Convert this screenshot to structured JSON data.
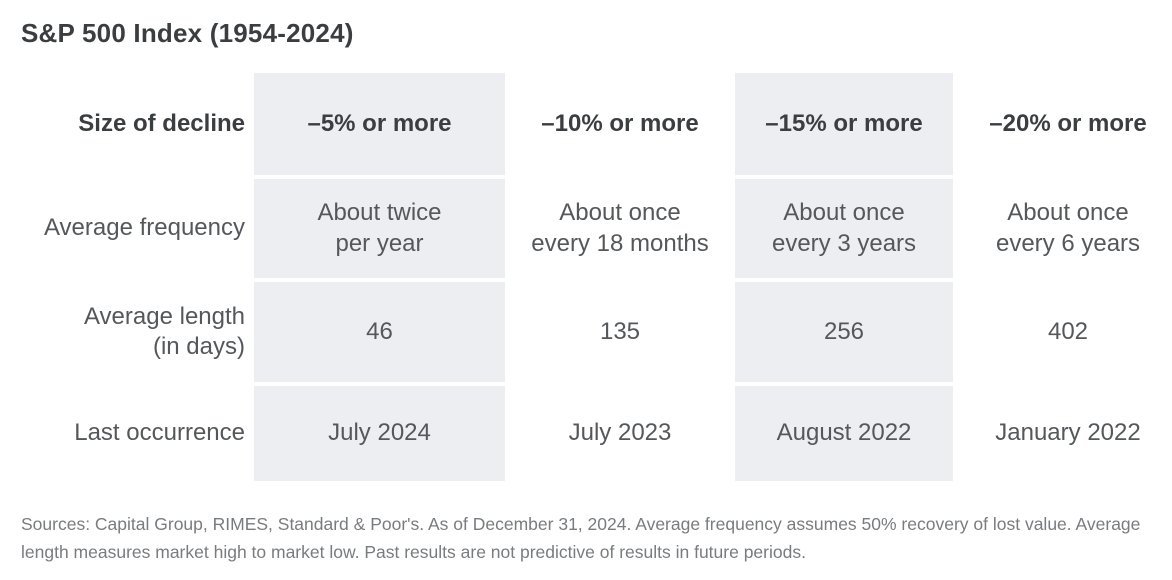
{
  "title": "S&P 500 Index (1954-2024)",
  "table": {
    "row_header_label": "Size of decline",
    "columns": [
      "–5% or more",
      "–10% or more",
      "–15% or more",
      "–20% or more"
    ],
    "rows": [
      {
        "label": "Average frequency",
        "values": [
          "About twice\nper year",
          "About once\nevery 18 months",
          "About once\nevery 3 years",
          "About once\nevery 6 years"
        ]
      },
      {
        "label": "Average length\n(in days)",
        "values": [
          "46",
          "135",
          "256",
          "402"
        ]
      },
      {
        "label": "Last occurrence",
        "values": [
          "July 2024",
          "July 2023",
          "August 2022",
          "January 2022"
        ]
      }
    ]
  },
  "footnote": "Sources: Capital Group, RIMES, Standard & Poor's. As of December 31, 2024. Average frequency assumes 50% recovery of lost value. Average length measures market high to market low. Past results are not predictive of results in future periods.",
  "colors": {
    "shaded_column": "#eceef1",
    "heading_text": "#3b3e40",
    "body_text": "#55585a",
    "footnote_text": "#797c7f"
  }
}
